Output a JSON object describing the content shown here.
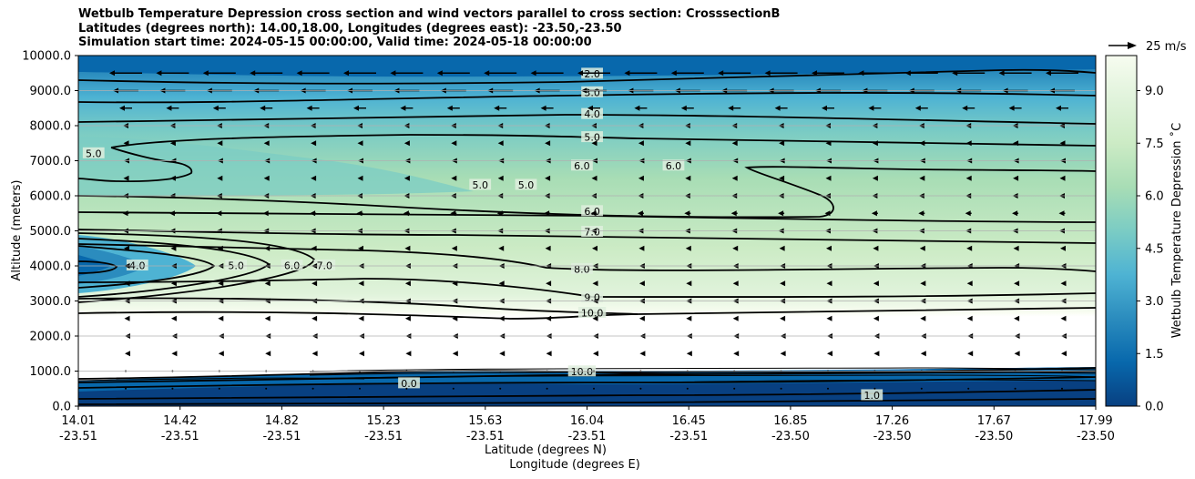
{
  "chart_data": {
    "type": "contour",
    "title_lines": [
      "Wetbulb Temperature Depression cross section and wind vectors parallel to cross section: CrosssectionB",
      "Latitudes (degrees north): 14.00,18.00, Longitudes (degrees east): -23.50,-23.50",
      "Simulation start time: 2024-05-15 00:00:00, Valid time: 2024-05-18 00:00:00"
    ],
    "ylabel": "Altitude (meters)",
    "xlabel_lat": "Latitude (degrees N)",
    "xlabel_lon": "Longitude (degrees E)",
    "ylim": [
      0,
      10000
    ],
    "yticks": [
      "0.0",
      "1000.0",
      "2000.0",
      "3000.0",
      "4000.0",
      "5000.0",
      "6000.0",
      "7000.0",
      "8000.0",
      "9000.0",
      "10000.0"
    ],
    "yvals": [
      0,
      1000,
      2000,
      3000,
      4000,
      5000,
      6000,
      7000,
      8000,
      9000,
      10000
    ],
    "xticks": [
      {
        "lat": "14.01",
        "lon": "-23.51",
        "f": 0.0
      },
      {
        "lat": "14.42",
        "lon": "-23.51",
        "f": 0.1
      },
      {
        "lat": "14.82",
        "lon": "-23.51",
        "f": 0.2
      },
      {
        "lat": "15.23",
        "lon": "-23.51",
        "f": 0.3
      },
      {
        "lat": "15.63",
        "lon": "-23.51",
        "f": 0.4
      },
      {
        "lat": "16.04",
        "lon": "-23.51",
        "f": 0.5
      },
      {
        "lat": "16.45",
        "lon": "-23.51",
        "f": 0.6
      },
      {
        "lat": "16.85",
        "lon": "-23.50",
        "f": 0.7
      },
      {
        "lat": "17.26",
        "lon": "-23.50",
        "f": 0.8
      },
      {
        "lat": "17.67",
        "lon": "-23.50",
        "f": 0.9
      },
      {
        "lat": "17.99",
        "lon": "-23.50",
        "f": 1.0
      }
    ],
    "colorbar": {
      "label": "Wetbulb Temperature Depression ˚C",
      "range": [
        0,
        10
      ],
      "ticks": [
        "0.0",
        "1.5",
        "3.0",
        "4.5",
        "6.0",
        "7.5",
        "9.0"
      ],
      "tickvals": [
        0,
        1.5,
        3,
        4.5,
        6,
        7.5,
        9
      ],
      "colors": [
        "#084081",
        "#0868ac",
        "#2b8cbe",
        "#4eb3d3",
        "#7bccc4",
        "#a8ddb5",
        "#ccebc5",
        "#e0f3db",
        "#f7fcf0"
      ]
    },
    "wind_key": "25 m/s",
    "contour_labels": [
      {
        "text": "2.0",
        "x": 0.505,
        "y": 9470
      },
      {
        "text": "3.0",
        "x": 0.505,
        "y": 8940
      },
      {
        "text": "4.0",
        "x": 0.505,
        "y": 8320
      },
      {
        "text": "5.0",
        "x": 0.505,
        "y": 7660
      },
      {
        "text": "6.0",
        "x": 0.505,
        "y": 5550
      },
      {
        "text": "7.0",
        "x": 0.505,
        "y": 4960
      },
      {
        "text": "8.0",
        "x": 0.495,
        "y": 3900
      },
      {
        "text": "9.0",
        "x": 0.505,
        "y": 3090
      },
      {
        "text": "10.0",
        "x": 0.505,
        "y": 2650
      },
      {
        "text": "5.0",
        "x": 0.015,
        "y": 7200
      },
      {
        "text": "5.0",
        "x": 0.395,
        "y": 6300
      },
      {
        "text": "5.0",
        "x": 0.44,
        "y": 6300
      },
      {
        "text": "6.0",
        "x": 0.495,
        "y": 6850
      },
      {
        "text": "6.0",
        "x": 0.585,
        "y": 6850
      },
      {
        "text": "4.0",
        "x": 0.058,
        "y": 4000
      },
      {
        "text": "5.0",
        "x": 0.155,
        "y": 4000
      },
      {
        "text": "6.0",
        "x": 0.21,
        "y": 4000
      },
      {
        "text": "7.0",
        "x": 0.242,
        "y": 4000
      },
      {
        "text": "0.0",
        "x": 0.325,
        "y": 640
      },
      {
        "text": "10.0",
        "x": 0.495,
        "y": 980
      },
      {
        "text": "1.0",
        "x": 0.78,
        "y": 300
      }
    ]
  }
}
